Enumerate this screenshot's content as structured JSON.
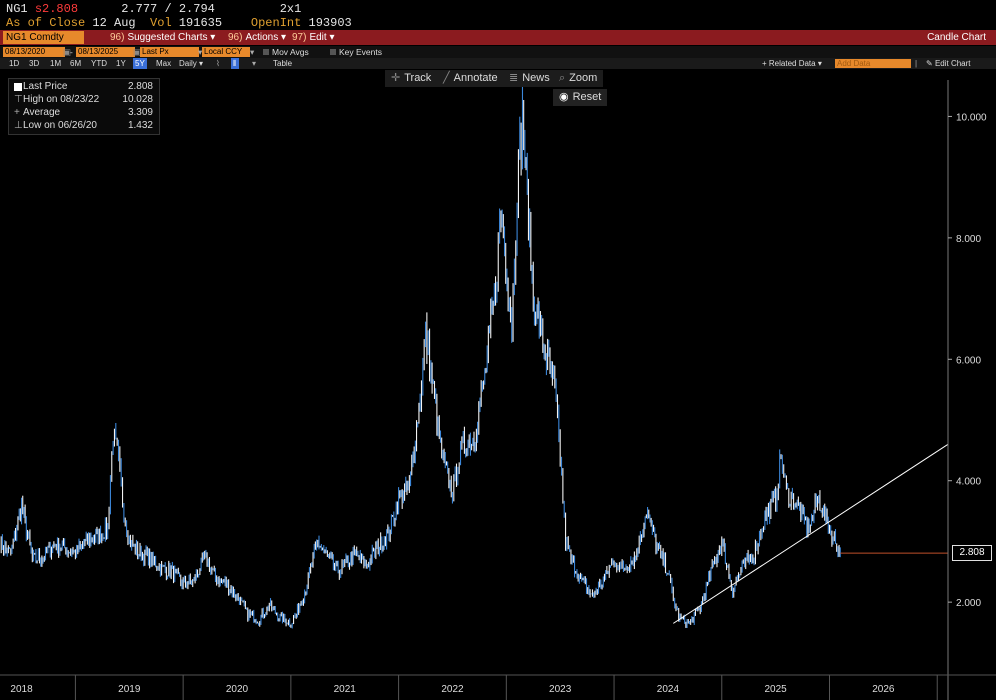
{
  "header": {
    "ticker_code": "NG1",
    "price_prefix": "s",
    "last_price": "2.808",
    "bid_ask": "2.777 / 2.794",
    "size": "2x1",
    "as_of_label": "As of Close",
    "as_of_date": "12 Aug",
    "vol_label": "Vol",
    "vol_value": "191635",
    "openint_label": "OpenInt",
    "openint_value": "193903"
  },
  "toolbar": {
    "security": "NG1 Comdty",
    "suggested_charts": "Suggested Charts",
    "suggested_charts_num": "96)",
    "actions": "Actions",
    "actions_num": "96)",
    "edit": "Edit",
    "edit_num": "97)",
    "view_name": "Candle Chart"
  },
  "controls": {
    "start_date": "08/13/2020",
    "end_date": "08/13/2025",
    "field": "Last Px",
    "currency": "Local CCY",
    "mov_avgs": "Mov Avgs",
    "key_events": "Key Events"
  },
  "periods": [
    "1D",
    "3D",
    "1M",
    "6M",
    "YTD",
    "1Y",
    "5Y",
    "Max"
  ],
  "selected_period": "5Y",
  "frequency": "Daily",
  "table_label": "Table",
  "related_data": "+ Related Data",
  "add_data_placeholder": "Add Data",
  "edit_chart": "Edit Chart",
  "tools": {
    "track": "Track",
    "annotate": "Annotate",
    "news": "News",
    "zoom": "Zoom",
    "reset": "Reset"
  },
  "legend": {
    "last_price_label": "Last Price",
    "last_price_value": "2.808",
    "high_label": "High on 08/23/22",
    "high_value": "10.028",
    "average_label": "Average",
    "average_value": "3.309",
    "low_label": "Low on 06/26/20",
    "low_value": "1.432"
  },
  "colors": {
    "series": "#3f8fe6",
    "highlight": "#ffffff",
    "trendline": "#ffffff",
    "last_price_line": "#c0502a",
    "header_bar": "#8b1b1f",
    "field_orange": "#e7892b"
  },
  "chart_data": {
    "type": "line",
    "title": "",
    "xlabel": "",
    "ylabel": "",
    "x_ticks": [
      "2018",
      "2019",
      "2020",
      "2021",
      "2022",
      "2023",
      "2024",
      "2025",
      "2026"
    ],
    "y_ticks": [
      "2.000",
      "4.000",
      "6.000",
      "8.000",
      "10.000"
    ],
    "ylim": [
      0.8,
      10.6
    ],
    "xlim": [
      2017.8,
      2026.6
    ],
    "last_price_tag": "2.808",
    "series": [
      {
        "name": "Last Price",
        "x": [
          2017.8,
          2017.9,
          2018.0,
          2018.1,
          2018.2,
          2018.3,
          2018.4,
          2018.5,
          2018.6,
          2018.7,
          2018.8,
          2018.85,
          2018.9,
          2018.95,
          2019.0,
          2019.1,
          2019.2,
          2019.3,
          2019.4,
          2019.5,
          2019.6,
          2019.7,
          2019.8,
          2019.9,
          2020.0,
          2020.1,
          2020.2,
          2020.3,
          2020.4,
          2020.5,
          2020.55,
          2020.65,
          2020.75,
          2020.85,
          2020.95,
          2021.0,
          2021.1,
          2021.2,
          2021.3,
          2021.4,
          2021.5,
          2021.6,
          2021.7,
          2021.75,
          2021.8,
          2021.9,
          2022.0,
          2022.05,
          2022.1,
          2022.2,
          2022.3,
          2022.4,
          2022.45,
          2022.55,
          2022.6,
          2022.65,
          2022.75,
          2022.85,
          2022.95,
          2023.0,
          2023.05,
          2023.1,
          2023.2,
          2023.3,
          2023.4,
          2023.5,
          2023.55,
          2023.6,
          2023.7,
          2023.8,
          2023.9,
          2024.0,
          2024.05,
          2024.1,
          2024.2,
          2024.3,
          2024.4,
          2024.5,
          2024.6,
          2024.7,
          2024.8,
          2024.85,
          2024.9,
          2025.0,
          2025.05,
          2025.1,
          2025.2,
          2025.3,
          2025.4,
          2025.5,
          2025.6
        ],
        "y": [
          2.95,
          2.8,
          3.6,
          2.7,
          2.75,
          2.95,
          2.9,
          2.8,
          3.0,
          3.1,
          3.2,
          4.8,
          4.3,
          3.5,
          3.0,
          2.8,
          2.7,
          2.55,
          2.5,
          2.3,
          2.35,
          2.75,
          2.4,
          2.3,
          2.1,
          1.8,
          1.7,
          1.95,
          1.75,
          1.65,
          1.8,
          2.3,
          3.0,
          2.7,
          2.5,
          2.6,
          2.8,
          2.6,
          2.9,
          3.1,
          3.7,
          3.9,
          5.4,
          6.4,
          5.8,
          4.4,
          3.8,
          4.3,
          4.6,
          4.7,
          5.7,
          7.2,
          8.5,
          6.6,
          8.8,
          10.0,
          7.0,
          6.2,
          5.5,
          4.4,
          3.0,
          2.7,
          2.35,
          2.1,
          2.35,
          2.7,
          2.55,
          2.6,
          2.75,
          3.5,
          2.9,
          2.5,
          2.05,
          1.75,
          1.65,
          1.9,
          2.5,
          3.0,
          2.2,
          2.6,
          2.8,
          3.1,
          3.4,
          3.7,
          4.4,
          3.8,
          3.6,
          3.2,
          3.7,
          3.2,
          2.81
        ]
      }
    ],
    "trendline": {
      "x": [
        2024.05,
        2026.6
      ],
      "y": [
        1.65,
        4.6
      ]
    },
    "last_price_line": {
      "x_start": 2025.6,
      "y": 2.808
    }
  }
}
